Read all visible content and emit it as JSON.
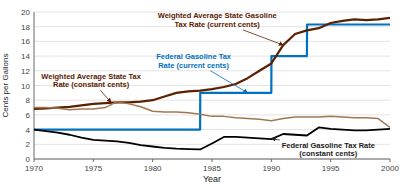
{
  "chart_data": {
    "type": "line",
    "xlabel": "Year",
    "ylabel": "Cents per Gallons",
    "xlim": [
      1970,
      2000
    ],
    "ylim": [
      0,
      20
    ],
    "xticks": [
      1970,
      1975,
      1980,
      1985,
      1990,
      1995,
      2000
    ],
    "yticks": [
      0,
      2,
      4,
      6,
      8,
      10,
      12,
      14,
      16,
      18,
      20
    ],
    "grid": true,
    "series": [
      {
        "color": "#0070c0",
        "x": [
          1970,
          1983,
          1983.01,
          1984,
          1984.01,
          1990,
          1990.01,
          1993,
          1993.01,
          2000
        ],
        "values": [
          4,
          4,
          4,
          4,
          9,
          9,
          14,
          14,
          18.3,
          18.3
        ]
      },
      {
        "color": "#000000",
        "x": [
          1970,
          1971,
          1972,
          1973,
          1974,
          1975,
          1976,
          1977,
          1978,
          1979,
          1980,
          1981,
          1982,
          1983,
          1984,
          1985,
          1986,
          1987,
          1988,
          1989,
          1990,
          1991,
          1992,
          1993,
          1994,
          1995,
          1996,
          1997,
          1998,
          1999,
          2000
        ],
        "values": [
          4.0,
          3.8,
          3.6,
          3.3,
          2.9,
          2.6,
          2.5,
          2.4,
          2.2,
          1.9,
          1.7,
          1.5,
          1.4,
          1.35,
          1.3,
          2.1,
          3.0,
          3.0,
          2.9,
          2.8,
          2.7,
          3.4,
          3.3,
          3.2,
          4.3,
          4.1,
          4.0,
          3.9,
          3.9,
          4.0,
          4.1
        ]
      },
      {
        "color": "#5a2000",
        "x": [
          1970,
          1971,
          1972,
          1973,
          1974,
          1975,
          1976,
          1977,
          1978,
          1979,
          1980,
          1981,
          1982,
          1983,
          1984,
          1985,
          1986,
          1987,
          1988,
          1989,
          1990,
          1991,
          1992,
          1993,
          1994,
          1995,
          1996,
          1997,
          1998,
          1999,
          2000
        ],
        "values": [
          6.8,
          6.9,
          7.0,
          7.1,
          7.3,
          7.5,
          7.6,
          7.7,
          7.7,
          7.8,
          8.0,
          8.5,
          9.0,
          9.2,
          9.3,
          9.5,
          9.8,
          10.2,
          11.0,
          12.0,
          13.0,
          15.5,
          17.0,
          17.5,
          17.8,
          18.5,
          18.8,
          19.0,
          18.9,
          19.0,
          19.2
        ]
      },
      {
        "color": "#a07850",
        "x": [
          1970,
          1971,
          1972,
          1973,
          1974,
          1975,
          1976,
          1977,
          1978,
          1979,
          1980,
          1981,
          1982,
          1983,
          1984,
          1985,
          1986,
          1987,
          1988,
          1989,
          1990,
          1991,
          1992,
          1993,
          1994,
          1995,
          1996,
          1997,
          1998,
          1999,
          2000
        ],
        "values": [
          7.0,
          7.0,
          6.9,
          6.7,
          6.8,
          6.8,
          7.0,
          7.8,
          7.5,
          7.1,
          6.5,
          6.4,
          6.4,
          6.3,
          6.1,
          5.8,
          5.8,
          5.6,
          5.5,
          5.4,
          5.2,
          5.5,
          5.7,
          5.7,
          5.7,
          5.8,
          5.7,
          5.6,
          5.6,
          5.5,
          4.3
        ]
      }
    ],
    "annotations": [
      {
        "text": "Weighted Average State Gasoline\nTax Rate (current cents)",
        "x": 1991,
        "y": 15.5,
        "color": "#5a2000"
      },
      {
        "text": "Federal Gasoline Tax\nRate (current cents)",
        "x": 1988,
        "y": 9.0,
        "color": "#0070c0"
      },
      {
        "text": "Weighted Average State Tax\nRate (constant cents)",
        "x": 1976.5,
        "y": 7.7,
        "color": "#5a2000"
      },
      {
        "text": "Federal Gasoline Tax Rate\n(constant cents)",
        "x": 1990,
        "y": 2.8,
        "color": "#222222"
      }
    ]
  }
}
